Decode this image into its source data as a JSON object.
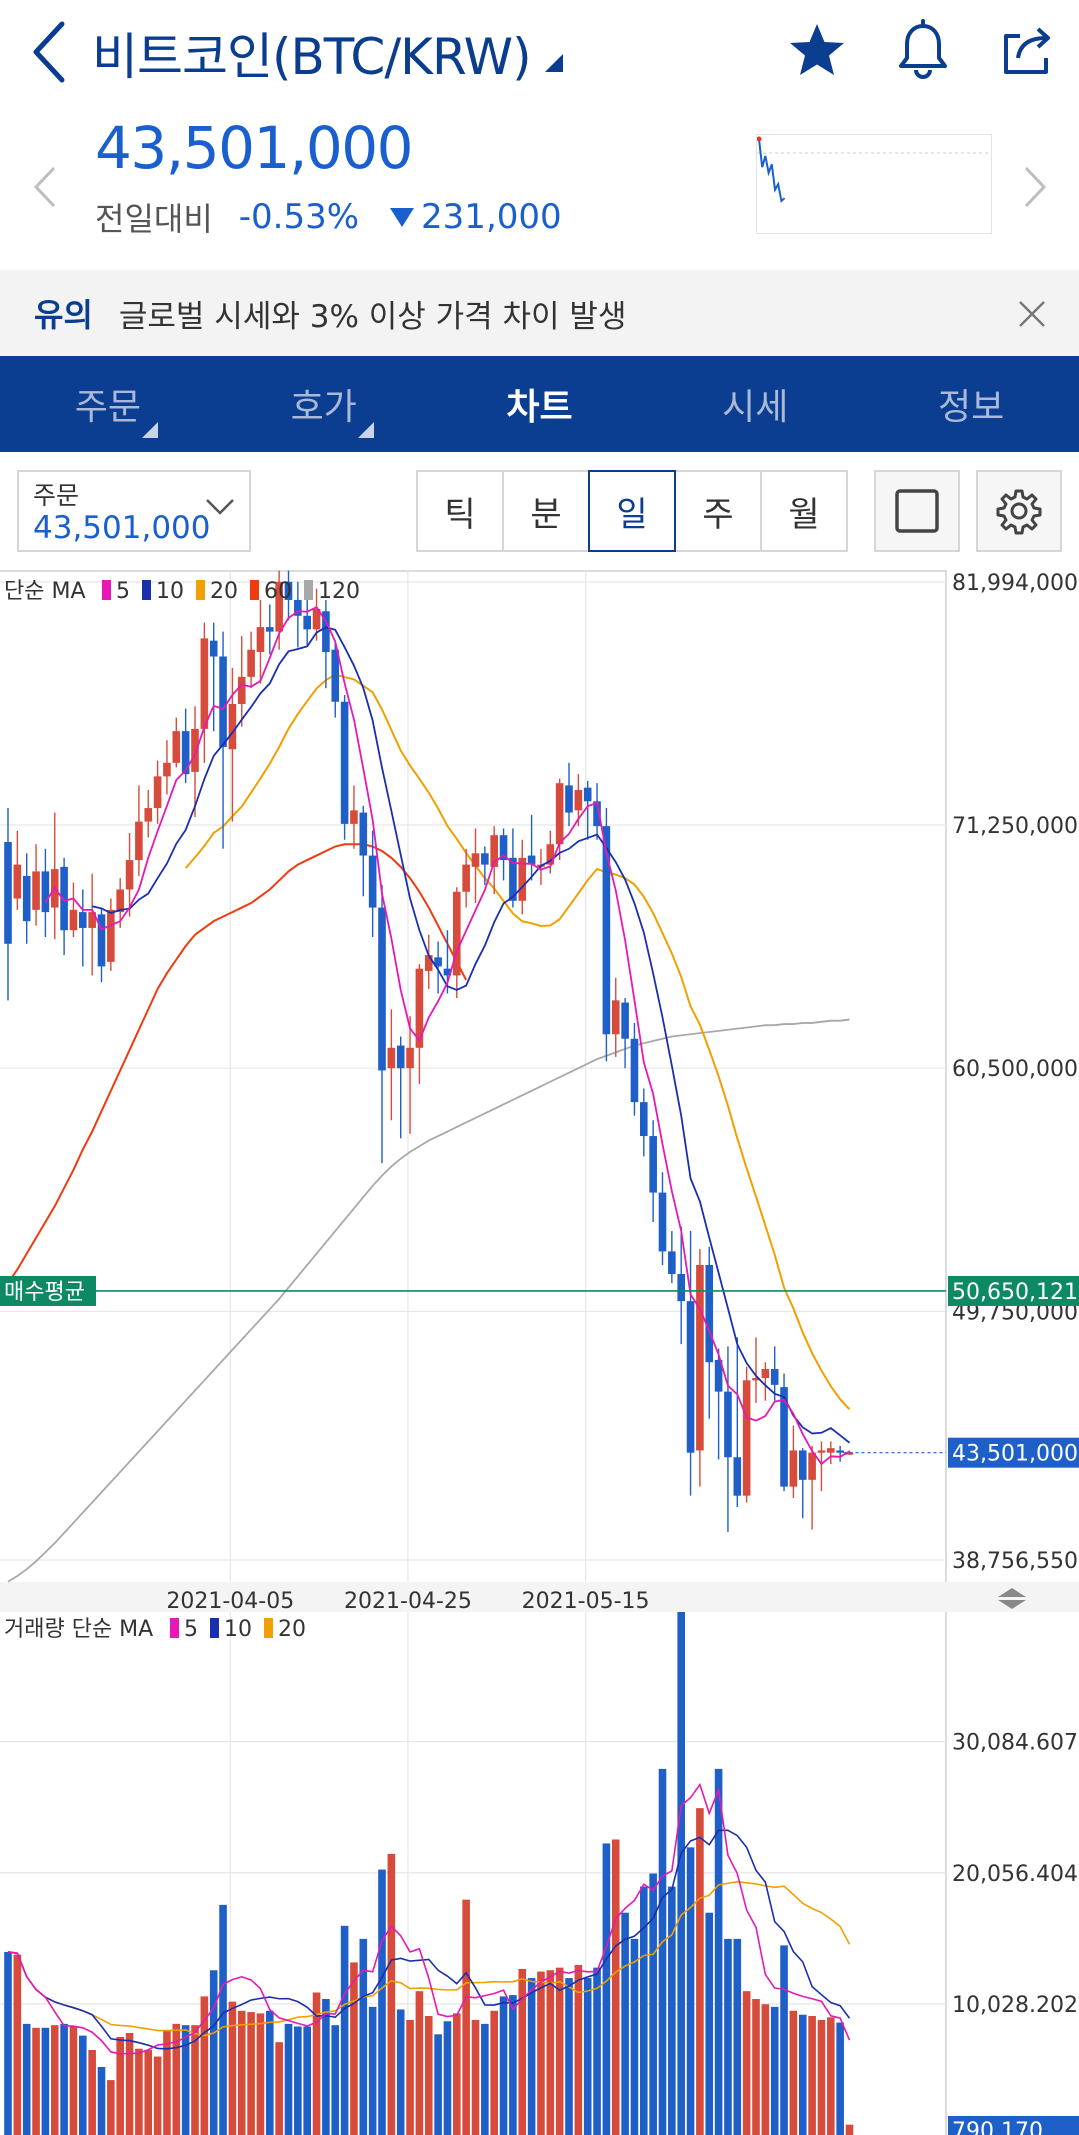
{
  "header": {
    "title": "비트코인(BTC/KRW)",
    "back_icon": "chevron-left-icon",
    "dropdown_icon": "caret-down-icon",
    "favorite_icon": "star-icon",
    "alert_icon": "bell-icon",
    "share_icon": "share-icon"
  },
  "quote": {
    "price": "43,501,000",
    "change_label": "전일대비",
    "change_percent": "-0.53%",
    "change_amount": "231,000",
    "direction": "down",
    "mini_chart_points": [
      82000000,
      72000000,
      76000000,
      70000000,
      73000000,
      64000000,
      66000000,
      60000000,
      61000000
    ]
  },
  "notice": {
    "tag": "유의",
    "text": "글로벌 시세와 3% 이상 가격 차이 발생",
    "close_icon": "close-icon"
  },
  "tabs": [
    {
      "label": "주문",
      "has_menu": true,
      "active": false
    },
    {
      "label": "호가",
      "has_menu": true,
      "active": false
    },
    {
      "label": "차트",
      "has_menu": false,
      "active": true
    },
    {
      "label": "시세",
      "has_menu": false,
      "active": false
    },
    {
      "label": "정보",
      "has_menu": false,
      "active": false
    }
  ],
  "toolbar": {
    "order_label": "주문",
    "order_value": "43,501,000",
    "periods": [
      "틱",
      "분",
      "일",
      "주",
      "월"
    ],
    "active_period": "일",
    "fullscreen_icon": "square-icon",
    "settings_icon": "gear-icon"
  },
  "colors": {
    "up": "#d64b3b",
    "down": "#1f5fc8",
    "ma5": "#e619b4",
    "ma10": "#1a2fb0",
    "ma20": "#f0a000",
    "ma60": "#f03a10",
    "ma120": "#a8a8a8",
    "avg_buy": "#0d8a64",
    "brand": "#0b3d91"
  },
  "chart_data": [
    {
      "type": "candlestick",
      "legend_prefix": "단순 MA",
      "ma_periods": [
        "5",
        "10",
        "20",
        "60",
        "120"
      ],
      "y_ticks": [
        "81,994,000",
        "71,250,000",
        "60,500,000",
        "49,750,000",
        "38,756,550"
      ],
      "y_tick_values": [
        81994000,
        71250000,
        60500000,
        49750000,
        38756550
      ],
      "ylim": [
        38756550,
        81994000
      ],
      "x_ticks": [
        "2021-04-05",
        "2021-04-25",
        "2021-05-15"
      ],
      "grid": true,
      "avg_buy_label": "매수평균",
      "avg_buy_value": "50,650,121",
      "avg_buy_number": 50650121,
      "current_value": "43,501,000",
      "current_number": 43501000,
      "candles": [
        [
          70500000,
          66000000,
          72000000,
          63500000
        ],
        [
          68000000,
          69500000,
          71000000,
          67500000
        ],
        [
          69000000,
          67000000,
          70000000,
          66000000
        ],
        [
          67500000,
          69200000,
          70400000,
          66800000
        ],
        [
          69200000,
          67400000,
          70200000,
          66300000
        ],
        [
          67600000,
          69300000,
          71800000,
          66200000
        ],
        [
          69400000,
          66600000,
          69800000,
          65500000
        ],
        [
          66600000,
          67500000,
          68700000,
          66300000
        ],
        [
          67400000,
          66700000,
          68400000,
          65000000
        ],
        [
          66700000,
          67400000,
          69100000,
          64600000
        ],
        [
          67300000,
          65000000,
          67600000,
          64300000
        ],
        [
          65200000,
          67500000,
          68000000,
          64800000
        ],
        [
          67400000,
          68400000,
          68900000,
          66700000
        ],
        [
          68400000,
          69700000,
          70900000,
          67200000
        ],
        [
          69700000,
          71400000,
          73000000,
          69000000
        ],
        [
          71400000,
          72000000,
          72800000,
          70700000
        ],
        [
          72000000,
          73400000,
          74100000,
          71300000
        ],
        [
          73400000,
          74000000,
          75000000,
          72600000
        ],
        [
          74000000,
          75400000,
          76000000,
          73800000
        ],
        [
          75400000,
          73500000,
          76400000,
          73100000
        ],
        [
          73600000,
          75500000,
          76500000,
          71600000
        ],
        [
          75500000,
          79500000,
          80200000,
          74000000
        ],
        [
          79400000,
          78700000,
          80200000,
          75400000
        ],
        [
          78700000,
          74700000,
          79800000,
          70200000
        ],
        [
          74600000,
          76600000,
          78200000,
          71400000
        ],
        [
          76600000,
          77800000,
          79600000,
          75600000
        ],
        [
          77800000,
          79000000,
          79800000,
          77300000
        ],
        [
          78900000,
          80000000,
          81200000,
          77500000
        ],
        [
          80000000,
          79800000,
          81000000,
          78800000
        ],
        [
          79800000,
          82000000,
          82500000,
          79000000
        ],
        [
          82000000,
          81200000,
          82500000,
          80300000
        ],
        [
          81200000,
          80500000,
          82000000,
          79100000
        ],
        [
          80500000,
          79900000,
          81500000,
          79200000
        ],
        [
          79900000,
          80800000,
          81700000,
          79400000
        ],
        [
          80700000,
          78900000,
          81200000,
          77300000
        ],
        [
          79000000,
          76700000,
          79400000,
          76000000
        ],
        [
          76700000,
          71300000,
          77000000,
          70600000
        ],
        [
          71300000,
          71900000,
          73000000,
          70200000
        ],
        [
          71800000,
          69900000,
          72100000,
          68100000
        ],
        [
          69900000,
          67600000,
          71000000,
          66300000
        ],
        [
          67600000,
          60400000,
          68600000,
          56300000
        ],
        [
          60500000,
          61400000,
          63100000,
          58200000
        ],
        [
          61500000,
          60500000,
          61900000,
          57400000
        ],
        [
          60500000,
          61400000,
          62800000,
          57600000
        ],
        [
          61400000,
          64900000,
          65100000,
          59800000
        ],
        [
          64800000,
          65500000,
          66400000,
          64000000
        ],
        [
          65400000,
          65000000,
          66100000,
          63800000
        ],
        [
          64900000,
          64600000,
          66600000,
          63800000
        ],
        [
          64600000,
          68300000,
          68500000,
          63600000
        ],
        [
          68300000,
          69500000,
          70200000,
          67600000
        ],
        [
          69400000,
          70000000,
          71100000,
          67800000
        ],
        [
          70000000,
          69500000,
          70300000,
          68600000
        ],
        [
          69400000,
          70800000,
          71200000,
          68200000
        ],
        [
          70800000,
          69700000,
          71100000,
          68800000
        ],
        [
          69800000,
          67900000,
          71100000,
          67600000
        ],
        [
          67900000,
          69800000,
          70600000,
          67300000
        ],
        [
          69900000,
          69500000,
          71700000,
          68800000
        ],
        [
          69400000,
          69500000,
          70200000,
          68600000
        ],
        [
          69500000,
          70400000,
          71000000,
          69100000
        ],
        [
          70400000,
          73100000,
          73300000,
          69700000
        ],
        [
          73000000,
          71800000,
          74000000,
          71200000
        ],
        [
          71900000,
          72800000,
          73500000,
          71200000
        ],
        [
          72900000,
          72300000,
          73200000,
          70600000
        ],
        [
          72300000,
          71200000,
          73100000,
          70600000
        ],
        [
          71200000,
          62000000,
          72000000,
          60800000
        ],
        [
          62000000,
          63500000,
          64500000,
          61000000
        ],
        [
          63400000,
          61800000,
          63600000,
          60500000
        ],
        [
          61800000,
          59000000,
          62500000,
          58400000
        ],
        [
          59000000,
          57500000,
          59600000,
          56600000
        ],
        [
          57500000,
          55000000,
          58200000,
          53700000
        ],
        [
          55000000,
          52400000,
          55900000,
          51800000
        ],
        [
          52400000,
          51400000,
          53300000,
          51000000
        ],
        [
          51400000,
          50200000,
          53500000,
          48300000
        ],
        [
          50200000,
          43500000,
          53300000,
          41600000
        ],
        [
          43600000,
          51800000,
          52500000,
          42000000
        ],
        [
          51800000,
          47500000,
          52600000,
          45000000
        ],
        [
          47600000,
          46200000,
          48100000,
          43200000
        ],
        [
          46200000,
          43300000,
          48200000,
          40000000
        ],
        [
          43300000,
          41600000,
          48600000,
          41100000
        ],
        [
          41600000,
          46700000,
          47300000,
          41300000
        ],
        [
          46700000,
          46800000,
          48600000,
          45700000
        ],
        [
          46800000,
          47200000,
          47500000,
          45800000
        ],
        [
          47200000,
          46500000,
          48200000,
          45800000
        ],
        [
          46400000,
          42000000,
          47000000,
          41800000
        ],
        [
          42000000,
          43600000,
          44700000,
          41500000
        ],
        [
          43600000,
          42300000,
          43700000,
          40600000
        ],
        [
          42300000,
          43500000,
          43800000,
          40100000
        ],
        [
          43500000,
          43600000,
          44000000,
          41800000
        ],
        [
          43500000,
          43700000,
          44000000,
          43000000
        ],
        [
          43600000,
          43500000,
          43800000,
          43100000
        ],
        [
          43500000,
          43500000,
          43600000,
          43400000
        ]
      ],
      "ma60": [
        51000000,
        51600000,
        52300000,
        53000000,
        53700000,
        54400000,
        55200000,
        56000000,
        56900000,
        57700000,
        58600000,
        59500000,
        60400000,
        61300000,
        62200000,
        63100000,
        64000000,
        64700000,
        65300000,
        65900000,
        66400000,
        66700000,
        67000000,
        67200000,
        67400000,
        67600000,
        67800000,
        68100000,
        68400000,
        68800000,
        69200000,
        69500000,
        69700000,
        69900000,
        70100000,
        70300000,
        70400000,
        70400000,
        70400000,
        70300000,
        70100000,
        69800000,
        69400000,
        68900000,
        68300000,
        67600000,
        66800000,
        66000000,
        65200000,
        64400000
      ],
      "ma60_start_index": 41,
      "ma120_start": [
        37800000,
        38050000,
        38350000,
        38700000,
        39100000,
        39500000,
        39950000,
        40400000,
        40850000,
        41300000,
        41750000,
        42200000,
        42650000,
        43100000,
        43550000,
        44000000,
        44450000,
        44900000,
        45350000,
        45800000,
        46250000,
        46700000,
        47150000,
        47600000,
        48050000,
        48500000,
        48950000,
        49400000,
        49850000,
        50300000,
        50800000,
        51300000,
        51800000,
        52300000,
        52800000,
        53300000,
        53800000,
        54300000,
        54800000,
        55300000,
        55750000,
        56150000,
        56500000,
        56800000,
        57050000,
        57300000,
        57500000,
        57700000,
        57900000,
        58100000,
        58300000,
        58500000,
        58700000,
        58900000,
        59100000,
        59300000,
        59500000,
        59700000,
        59900000,
        60100000,
        60300000,
        60500000,
        60700000,
        60900000,
        61050000,
        61200000,
        61350000,
        61500000,
        61600000,
        61700000,
        61800000,
        61900000,
        61950000,
        62000000,
        62050000,
        62100000,
        62150000,
        62200000,
        62250000,
        62300000,
        62350000,
        62400000,
        62400000,
        62450000,
        62450000,
        62500000,
        62500000,
        62550000,
        62600000,
        62600000,
        62650000
      ]
    },
    {
      "type": "bar",
      "legend_prefix": "거래량 단순 MA",
      "ma_periods": [
        "5",
        "10",
        "20"
      ],
      "y_ticks": [
        "30,084.607",
        "20,056.404",
        "10,028.202"
      ],
      "y_tick_values": [
        30084.607,
        20056.404,
        10028.202
      ],
      "ylim": [
        0,
        40000
      ],
      "current_value": "790.170",
      "current_number": 790.17,
      "volumes": [
        14000,
        13800,
        8500,
        8200,
        8200,
        8400,
        8500,
        8300,
        7600,
        6500,
        5200,
        4200,
        7500,
        7800,
        6600,
        6500,
        6000,
        8000,
        8500,
        8400,
        8400,
        10600,
        12600,
        17600,
        10200,
        9500,
        9400,
        9300,
        9500,
        7100,
        8500,
        8300,
        8300,
        10900,
        10400,
        8400,
        16000,
        13200,
        15000,
        9800,
        20300,
        21500,
        9600,
        8800,
        11000,
        9100,
        7700,
        8700,
        9300,
        18000,
        8800,
        8500,
        9500,
        10600,
        10700,
        12700,
        12000,
        12500,
        12600,
        12800,
        12000,
        13000,
        12000,
        12800,
        22300,
        22600,
        17000,
        15000,
        19000,
        20000,
        28000,
        19000,
        40000,
        22000,
        25000,
        17000,
        28000,
        15000,
        15000,
        11000,
        10400,
        10000,
        9800,
        14500,
        9500,
        9200,
        9100,
        8800,
        9000,
        8600,
        790
      ]
    }
  ]
}
